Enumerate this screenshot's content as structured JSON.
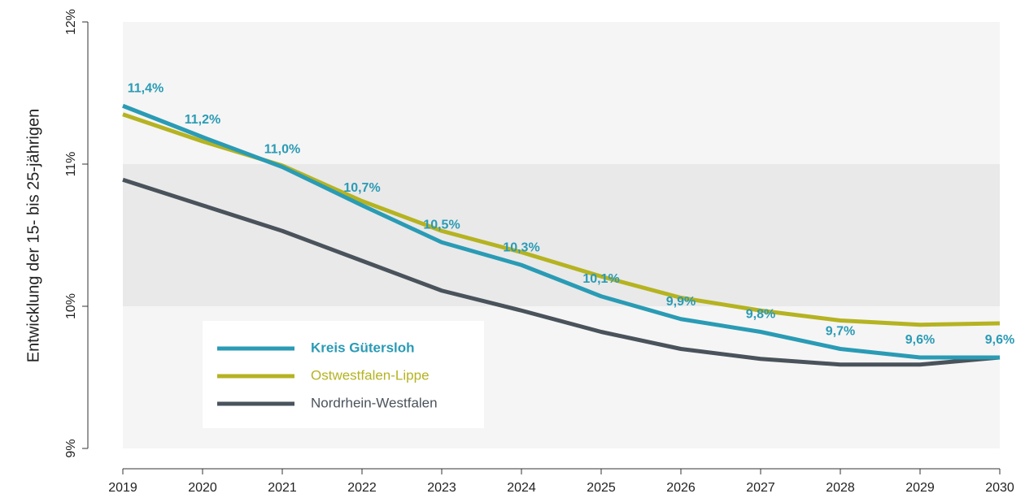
{
  "chart_data": {
    "type": "line",
    "y_label": "Entwicklung der 15- bis 25-jährigen",
    "x": [
      2019,
      2020,
      2021,
      2022,
      2023,
      2024,
      2025,
      2026,
      2027,
      2028,
      2029,
      2030
    ],
    "xlim": [
      2019,
      2030
    ],
    "xticks": [
      2019,
      2020,
      2021,
      2022,
      2023,
      2024,
      2025,
      2026,
      2027,
      2028,
      2029,
      2030
    ],
    "ylim": [
      9,
      12
    ],
    "yticks": [
      {
        "value": 9,
        "label": "9%"
      },
      {
        "value": 10,
        "label": "10%"
      },
      {
        "value": 11,
        "label": "11%"
      },
      {
        "value": 12,
        "label": "12%"
      }
    ],
    "legend": "bottom-left",
    "series": [
      {
        "name": "Kreis Gütersloh",
        "color": "#2a9bb5",
        "values": [
          11.41,
          11.19,
          10.98,
          10.71,
          10.45,
          10.29,
          10.07,
          9.91,
          9.82,
          9.7,
          9.64,
          9.64
        ],
        "value_labels": [
          "11,4%",
          "11,2%",
          "11,0%",
          "10,7%",
          "10,5%",
          "10,3%",
          "10,1%",
          "9,9%",
          "9,8%",
          "9,7%",
          "9,6%",
          "9,6%"
        ]
      },
      {
        "name": "Ostwestfalen-Lippe",
        "color": "#b5b321",
        "values": [
          11.35,
          11.16,
          10.99,
          10.74,
          10.53,
          10.38,
          10.21,
          10.06,
          9.97,
          9.9,
          9.87,
          9.88
        ]
      },
      {
        "name": "Nordrhein-Westfalen",
        "color": "#4a535b",
        "values": [
          10.89,
          10.71,
          10.53,
          10.32,
          10.11,
          9.97,
          9.82,
          9.7,
          9.63,
          9.59,
          9.59,
          9.64
        ]
      }
    ]
  }
}
